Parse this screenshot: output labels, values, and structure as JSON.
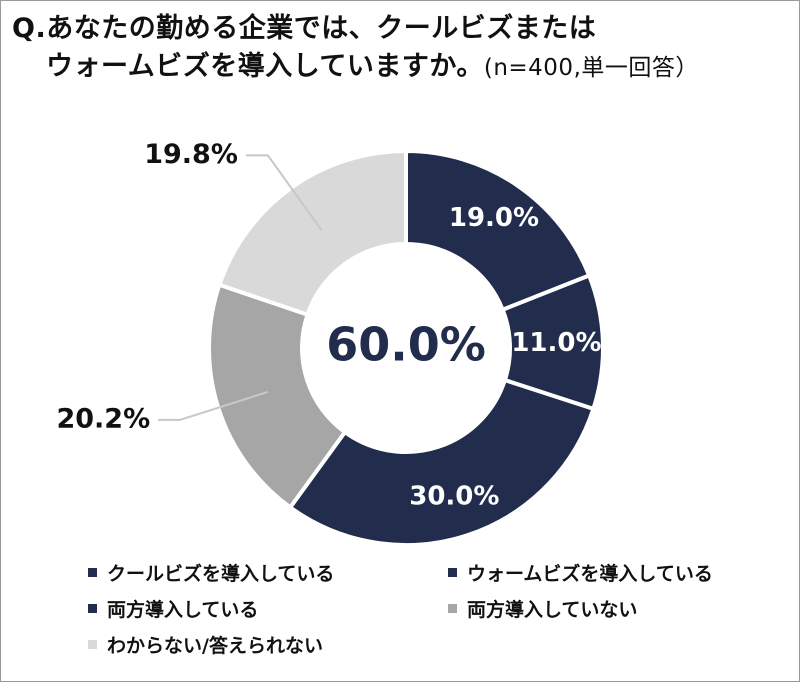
{
  "title": {
    "line1": "Q.あなたの勤める企業では、クールビズまたは",
    "line2": "ウォームビズを導入していますか。",
    "meta": "(n=400,単一回答）"
  },
  "chart_data": {
    "type": "pie",
    "donut": true,
    "center_label": "60.0%",
    "slices": [
      {
        "label": "クールビズを導入している",
        "value": 19.0,
        "value_label": "19.0%",
        "color": "#222d4d"
      },
      {
        "label": "ウォームビズを導入している",
        "value": 11.0,
        "value_label": "11.0%",
        "color": "#222d4d"
      },
      {
        "label": "両方導入している",
        "value": 30.0,
        "value_label": "30.0%",
        "color": "#222d4d"
      },
      {
        "label": "両方導入していない",
        "value": 20.2,
        "value_label": "20.2%",
        "color": "#a6a6a6"
      },
      {
        "label": "わからない/答えられない",
        "value": 19.8,
        "value_label": "19.8%",
        "color": "#d9d9d9"
      }
    ],
    "legend_position": "bottom"
  }
}
